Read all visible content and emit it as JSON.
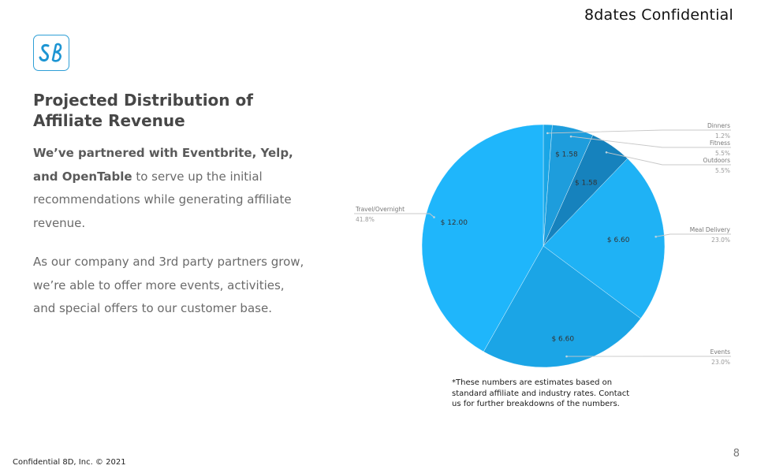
{
  "header": {
    "confidential_label": "8dates Confidential"
  },
  "logo": {
    "icon": "8dates-logo-icon",
    "color": "#1d95d3"
  },
  "slide": {
    "title": "Projected Distribution of Affiliate Revenue",
    "para1_bold": "We’ve partnered with Eventbrite, Yelp, and OpenTable",
    "para1_rest": " to serve up the initial recommendations while generating affiliate revenue.",
    "para2": "As our company and 3rd party partners grow, we’re able to offer more events, activities, and special offers to our customer base."
  },
  "chart_data": {
    "type": "pie",
    "title": "",
    "slices": [
      {
        "name": "Dinners",
        "percent_label": "1.2%",
        "value": 0.34,
        "value_label": "",
        "color": "#1aa6e6"
      },
      {
        "name": "Fitness",
        "percent_label": "5.5%",
        "value": 1.58,
        "value_label": "$ 1.58",
        "color": "#1e9ddc"
      },
      {
        "name": "Outdoors",
        "percent_label": "5.5%",
        "value": 1.58,
        "value_label": "$ 1.58",
        "color": "#1682bd"
      },
      {
        "name": "Meal Delivery",
        "percent_label": "23.0%",
        "value": 6.6,
        "value_label": "$ 6.60",
        "color": "#1fb2f5"
      },
      {
        "name": "Events",
        "percent_label": "23.0%",
        "value": 6.6,
        "value_label": "$ 6.60",
        "color": "#1ba5e6"
      },
      {
        "name": "Travel/Overnight",
        "percent_label": "41.8%",
        "value": 12.0,
        "value_label": "$ 12.00",
        "color": "#1fb6fb"
      }
    ],
    "colors": {
      "leader_line": "#c8c8c8",
      "label_text": "#333333",
      "category_text": "#777777",
      "percent_text": "#999999"
    }
  },
  "footnote": "*These numbers are estimates based on standard affiliate and industry rates. Contact us for further breakdowns of the numbers.",
  "footer": {
    "left": "Confidential 8D, Inc. © 2021",
    "page_number": "8"
  }
}
